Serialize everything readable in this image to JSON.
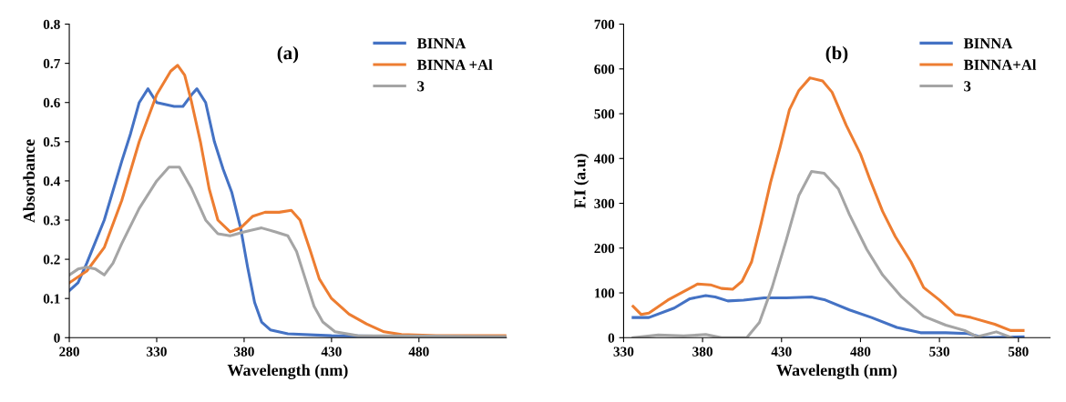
{
  "chart_data": [
    {
      "type": "line",
      "xlabel": "Wavelength (nm)",
      "ylabel": "Absorbance",
      "annotations": [
        "(a)"
      ],
      "xlim": [
        280,
        530
      ],
      "xticks": [
        280,
        330,
        380,
        430,
        480
      ],
      "ylim": [
        0,
        0.8
      ],
      "yticks": [
        0,
        0.1,
        0.2,
        0.3,
        0.4,
        0.5,
        0.6,
        0.7,
        0.8
      ],
      "legend": "top right",
      "grid": false,
      "series": [
        {
          "name": "BINNA",
          "color": "#4472c4",
          "x": [
            280,
            285,
            290,
            300,
            310,
            315,
            320,
            325,
            330,
            340,
            345,
            350,
            353,
            358,
            363,
            368,
            373,
            378,
            382,
            386,
            390,
            395,
            405,
            430,
            480,
            530
          ],
          "values": [
            0.12,
            0.14,
            0.19,
            0.3,
            0.45,
            0.52,
            0.6,
            0.635,
            0.6,
            0.59,
            0.59,
            0.62,
            0.635,
            0.6,
            0.5,
            0.43,
            0.37,
            0.28,
            0.18,
            0.09,
            0.04,
            0.02,
            0.01,
            0.005,
            0.003,
            0.002
          ]
        },
        {
          "name": "BINNA +Al",
          "color": "#ed7d31",
          "x": [
            280,
            290,
            300,
            310,
            320,
            330,
            338,
            342,
            346,
            350,
            355,
            360,
            365,
            372,
            378,
            385,
            392,
            400,
            407,
            412,
            418,
            423,
            430,
            440,
            450,
            460,
            470,
            490,
            530
          ],
          "values": [
            0.14,
            0.17,
            0.23,
            0.35,
            0.5,
            0.62,
            0.68,
            0.695,
            0.67,
            0.6,
            0.5,
            0.38,
            0.3,
            0.27,
            0.28,
            0.31,
            0.32,
            0.32,
            0.325,
            0.3,
            0.22,
            0.15,
            0.1,
            0.06,
            0.035,
            0.015,
            0.008,
            0.005,
            0.005
          ]
        },
        {
          "name": "3",
          "color": "#a5a5a5",
          "x": [
            280,
            285,
            290,
            295,
            300,
            305,
            310,
            320,
            330,
            337,
            343,
            350,
            358,
            365,
            372,
            380,
            390,
            398,
            405,
            410,
            415,
            420,
            425,
            432,
            445,
            530
          ],
          "values": [
            0.16,
            0.175,
            0.18,
            0.175,
            0.16,
            0.19,
            0.24,
            0.33,
            0.4,
            0.435,
            0.435,
            0.38,
            0.3,
            0.265,
            0.26,
            0.27,
            0.28,
            0.27,
            0.26,
            0.22,
            0.15,
            0.08,
            0.04,
            0.015,
            0.005,
            0.003
          ]
        }
      ]
    },
    {
      "type": "line",
      "xlabel": "Wavelength (nm)",
      "ylabel": "F.I (a.u)",
      "annotations": [
        "(b)"
      ],
      "xlim": [
        330,
        600
      ],
      "xticks": [
        330,
        380,
        430,
        480,
        530,
        580
      ],
      "ylim": [
        0,
        700
      ],
      "yticks": [
        0,
        100,
        200,
        300,
        400,
        500,
        600,
        700
      ],
      "legend": "top right",
      "grid": false,
      "series": [
        {
          "name": "BINNA",
          "color": "#4472c4",
          "x": [
            336,
            346,
            362,
            372,
            382,
            388,
            396,
            406,
            419,
            433,
            449,
            457,
            473,
            487,
            503,
            518,
            534,
            548,
            558,
            583
          ],
          "values": [
            45,
            45,
            66,
            87,
            94,
            91,
            82,
            84,
            89,
            89,
            91,
            85,
            62,
            45,
            23,
            11,
            11,
            9,
            0,
            2
          ]
        },
        {
          "name": "BINNA+Al",
          "color": "#ed7d31",
          "x": [
            336,
            341,
            346,
            358,
            377,
            385,
            392,
            399,
            405,
            411,
            417,
            423,
            429,
            435,
            441,
            448,
            456,
            462,
            471,
            480,
            486,
            494,
            502,
            512,
            520,
            530,
            540,
            550,
            565,
            575,
            583
          ],
          "values": [
            70,
            52,
            55,
            84,
            120,
            118,
            110,
            108,
            126,
            169,
            254,
            346,
            424,
            509,
            552,
            580,
            573,
            548,
            474,
            410,
            353,
            282,
            226,
            169,
            112,
            84,
            52,
            45,
            30,
            16,
            16
          ]
        },
        {
          "name": "3",
          "color": "#a5a5a5",
          "x": [
            336,
            352,
            368,
            382,
            392,
            408,
            416,
            424,
            433,
            441,
            449,
            457,
            466,
            473,
            484,
            494,
            506,
            520,
            534,
            546,
            554,
            566,
            576
          ],
          "values": [
            0,
            6,
            4,
            7,
            0,
            0,
            34,
            112,
            218,
            318,
            371,
            367,
            332,
            275,
            197,
            140,
            91,
            48,
            28,
            16,
            2,
            13,
            0
          ]
        }
      ]
    }
  ]
}
